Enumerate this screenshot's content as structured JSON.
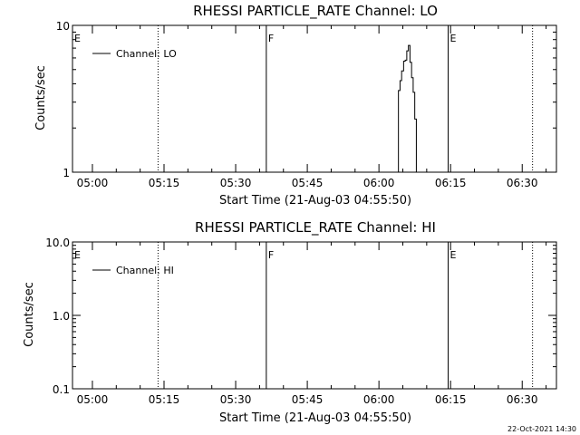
{
  "colors": {
    "background": "#ffffff",
    "foreground": "#000000"
  },
  "footer": {
    "date": "22-Oct-2021 14:30"
  },
  "chart_data": [
    {
      "type": "line",
      "title": "RHESSI PARTICLE_RATE Channel: LO",
      "xlabel": "Start Time (21-Aug-03 04:55:50)",
      "ylabel": "Counts/sec",
      "yscale": "log",
      "ylim": [
        1,
        10
      ],
      "xlim": [
        "04:55:50",
        "06:37:10"
      ],
      "xticks": [
        "05:00",
        "05:15",
        "05:30",
        "05:45",
        "06:00",
        "06:15",
        "06:30"
      ],
      "yticks": [
        "1",
        "10"
      ],
      "legend": {
        "placement": "top-left",
        "entries": [
          "Channel: LO"
        ]
      },
      "markers": [
        {
          "time": "04:55:50",
          "label": "E",
          "style": "solid"
        },
        {
          "time": "05:13:45",
          "label": "",
          "style": "dotted"
        },
        {
          "time": "05:36:25",
          "label": "F",
          "style": "solid"
        },
        {
          "time": "06:14:30",
          "label": "E",
          "style": "solid"
        },
        {
          "time": "06:32:10",
          "label": "",
          "style": "dotted"
        }
      ],
      "series": [
        {
          "name": "Channel: LO",
          "points": [
            [
              "06:03:50",
              1.0
            ],
            [
              "06:04:05",
              3.6
            ],
            [
              "06:04:25",
              4.2
            ],
            [
              "06:04:45",
              4.9
            ],
            [
              "06:05:10",
              5.7
            ],
            [
              "06:05:30",
              5.8
            ],
            [
              "06:05:50",
              6.7
            ],
            [
              "06:06:10",
              7.3
            ],
            [
              "06:06:30",
              5.6
            ],
            [
              "06:06:50",
              4.4
            ],
            [
              "06:07:10",
              3.5
            ],
            [
              "06:07:30",
              2.3
            ],
            [
              "06:07:50",
              1.0
            ]
          ]
        }
      ]
    },
    {
      "type": "line",
      "title": "RHESSI PARTICLE_RATE Channel: HI",
      "xlabel": "Start Time (21-Aug-03 04:55:50)",
      "ylabel": "Counts/sec",
      "yscale": "log",
      "ylim": [
        0.1,
        10
      ],
      "xlim": [
        "04:55:50",
        "06:37:10"
      ],
      "xticks": [
        "05:00",
        "05:15",
        "05:30",
        "05:45",
        "06:00",
        "06:15",
        "06:30"
      ],
      "yticks": [
        "0.1",
        "1.0",
        "10.0"
      ],
      "legend": {
        "placement": "top-left",
        "entries": [
          "Channel: HI"
        ]
      },
      "markers": [
        {
          "time": "04:55:50",
          "label": "E",
          "style": "solid"
        },
        {
          "time": "05:13:45",
          "label": "",
          "style": "dotted"
        },
        {
          "time": "05:36:25",
          "label": "F",
          "style": "solid"
        },
        {
          "time": "06:14:30",
          "label": "E",
          "style": "solid"
        },
        {
          "time": "06:32:10",
          "label": "",
          "style": "dotted"
        }
      ],
      "series": [
        {
          "name": "Channel: HI",
          "points": []
        }
      ]
    }
  ]
}
